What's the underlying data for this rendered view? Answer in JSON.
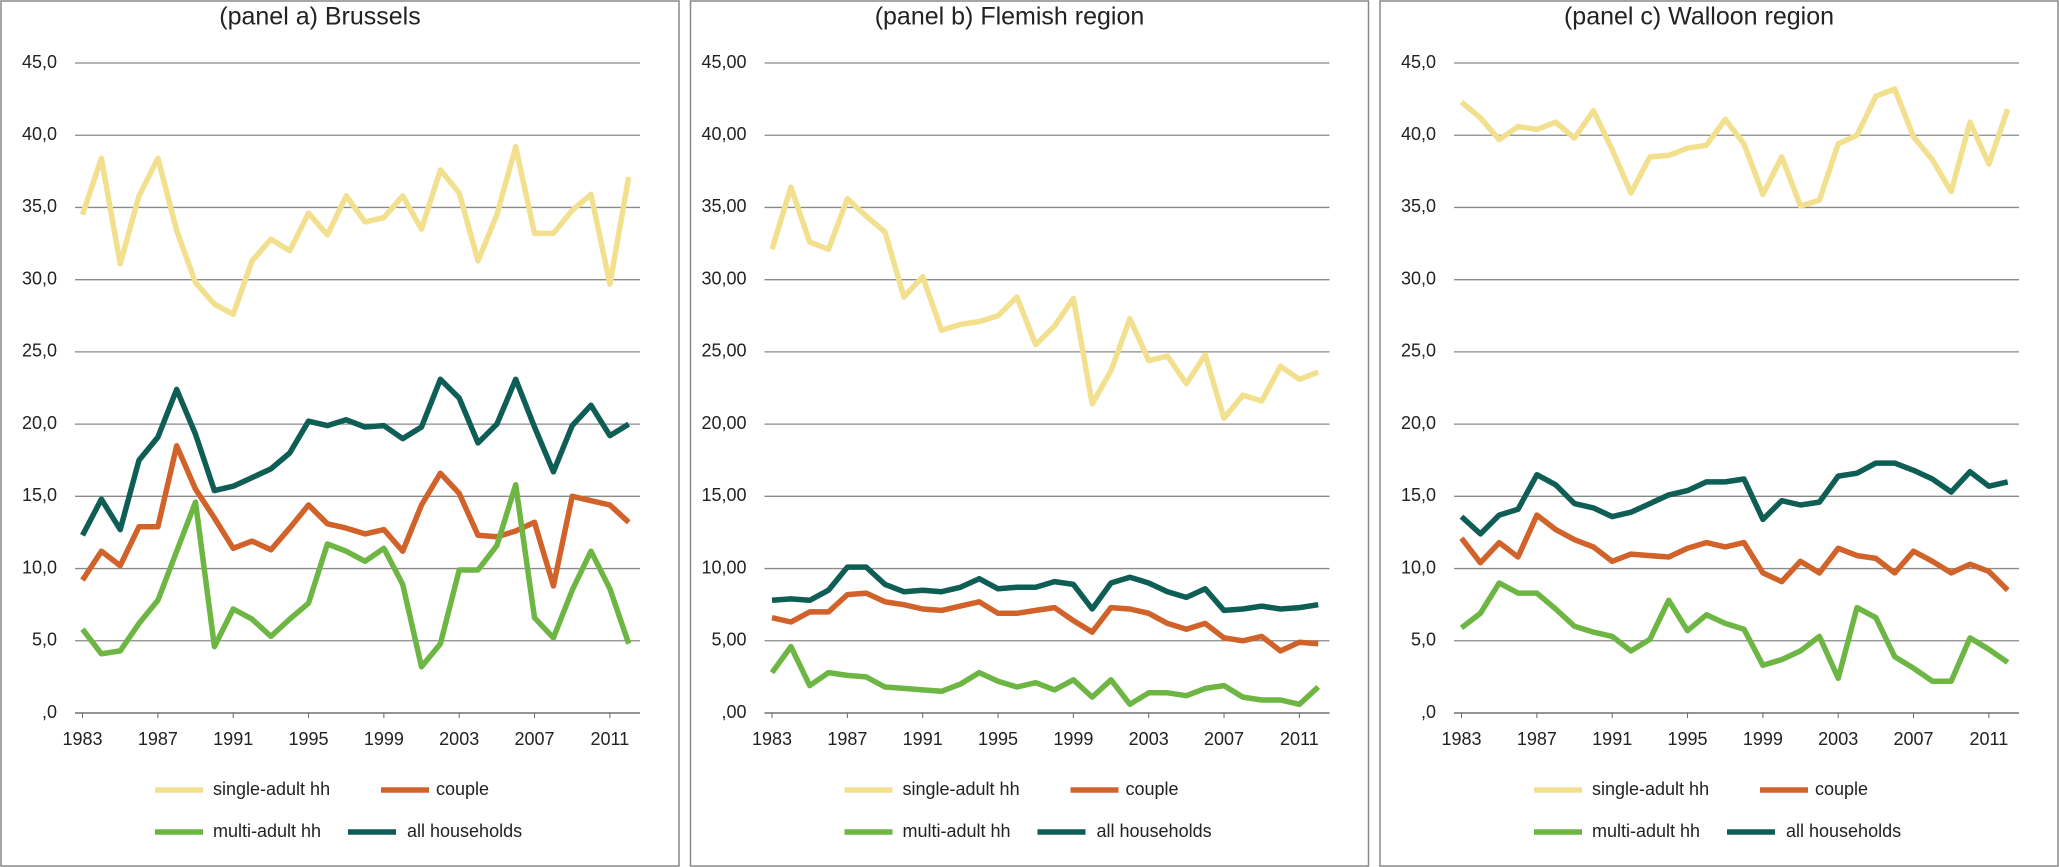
{
  "chart_data": [
    {
      "type": "line",
      "title": "(panel a) Brussels",
      "x": [
        1983,
        1984,
        1985,
        1986,
        1987,
        1988,
        1989,
        1990,
        1991,
        1992,
        1993,
        1994,
        1995,
        1996,
        1997,
        1998,
        1999,
        2000,
        2001,
        2002,
        2003,
        2004,
        2005,
        2006,
        2007,
        2008,
        2009,
        2010,
        2011,
        2012
      ],
      "xlim": [
        1982.6,
        2012.6
      ],
      "xticks": [
        1983,
        1987,
        1991,
        1995,
        1999,
        2003,
        2007,
        2011
      ],
      "ylim": [
        0,
        45
      ],
      "yticks": [
        {
          "value": 0,
          "label": ",0"
        },
        {
          "value": 5,
          "label": "5,0"
        },
        {
          "value": 10,
          "label": "10,0"
        },
        {
          "value": 15,
          "label": "15,0"
        },
        {
          "value": 20,
          "label": "20,0"
        },
        {
          "value": 25,
          "label": "25,0"
        },
        {
          "value": 30,
          "label": "30,0"
        },
        {
          "value": 35,
          "label": "35,0"
        },
        {
          "value": 40,
          "label": "40,0"
        },
        {
          "value": 45,
          "label": "45,0"
        }
      ],
      "grid": true,
      "series": [
        {
          "name": "single-adult hh",
          "color": "#f2e08f",
          "values": [
            34.5,
            38.4,
            31.1,
            35.8,
            38.4,
            33.4,
            29.8,
            28.3,
            27.6,
            31.3,
            32.8,
            32.0,
            34.6,
            33.1,
            35.8,
            34.0,
            34.3,
            35.8,
            33.5,
            37.6,
            36.0,
            31.3,
            34.5,
            39.2,
            33.2,
            33.2,
            34.8,
            35.9,
            29.7,
            37.1
          ]
        },
        {
          "name": "couple",
          "color": "#d0622a",
          "values": [
            9.2,
            11.2,
            10.2,
            12.9,
            12.9,
            18.5,
            15.5,
            13.5,
            11.4,
            11.9,
            11.3,
            12.8,
            14.4,
            13.1,
            12.8,
            12.4,
            12.7,
            11.2,
            14.4,
            16.6,
            15.2,
            12.3,
            12.2,
            12.6,
            13.2,
            8.8,
            15.0,
            14.7,
            14.4,
            13.2
          ]
        },
        {
          "name": "multi-adult hh",
          "color": "#6db644",
          "values": [
            5.8,
            4.1,
            4.3,
            6.2,
            7.8,
            11.2,
            14.6,
            4.6,
            7.2,
            6.5,
            5.3,
            6.5,
            7.6,
            11.7,
            11.2,
            10.5,
            11.4,
            8.9,
            3.2,
            4.8,
            9.9,
            9.9,
            11.6,
            15.8,
            6.6,
            5.2,
            8.5,
            11.2,
            8.6,
            4.8
          ]
        },
        {
          "name": "all households",
          "color": "#0e5e55",
          "values": [
            12.3,
            14.8,
            12.7,
            17.5,
            19.1,
            22.4,
            19.3,
            15.4,
            15.7,
            16.3,
            16.9,
            18.0,
            20.2,
            19.9,
            20.3,
            19.8,
            19.9,
            19.0,
            19.8,
            23.1,
            21.8,
            18.7,
            20.0,
            23.1,
            19.8,
            16.7,
            19.9,
            21.3,
            19.2,
            20.0
          ]
        }
      ]
    },
    {
      "type": "line",
      "title": "(panel b) Flemish region",
      "x": [
        1983,
        1984,
        1985,
        1986,
        1987,
        1988,
        1989,
        1990,
        1991,
        1992,
        1993,
        1994,
        1995,
        1996,
        1997,
        1998,
        1999,
        2000,
        2001,
        2002,
        2003,
        2004,
        2005,
        2006,
        2007,
        2008,
        2009,
        2010,
        2011,
        2012
      ],
      "xlim": [
        1982.6,
        2012.6
      ],
      "xticks": [
        1983,
        1987,
        1991,
        1995,
        1999,
        2003,
        2007,
        2011
      ],
      "ylim": [
        0,
        45
      ],
      "yticks": [
        {
          "value": 0,
          "label": ",00"
        },
        {
          "value": 5,
          "label": "5,00"
        },
        {
          "value": 10,
          "label": "10,00"
        },
        {
          "value": 15,
          "label": "15,00"
        },
        {
          "value": 20,
          "label": "20,00"
        },
        {
          "value": 25,
          "label": "25,00"
        },
        {
          "value": 30,
          "label": "30,00"
        },
        {
          "value": 35,
          "label": "35,00"
        },
        {
          "value": 40,
          "label": "40,00"
        },
        {
          "value": 45,
          "label": "45,00"
        }
      ],
      "grid": true,
      "series": [
        {
          "name": "single-adult hh",
          "color": "#f2e08f",
          "values": [
            32.1,
            36.4,
            32.6,
            32.1,
            35.6,
            34.4,
            33.3,
            28.8,
            30.2,
            26.5,
            26.9,
            27.1,
            27.5,
            28.8,
            25.5,
            26.8,
            28.7,
            21.4,
            23.7,
            27.3,
            24.4,
            24.7,
            22.8,
            24.8,
            20.4,
            22.0,
            21.6,
            24.0,
            23.1,
            23.6
          ]
        },
        {
          "name": "couple",
          "color": "#d0622a",
          "values": [
            6.6,
            6.3,
            7.0,
            7.0,
            8.2,
            8.3,
            7.7,
            7.5,
            7.2,
            7.1,
            7.4,
            7.7,
            6.9,
            6.9,
            7.1,
            7.3,
            6.4,
            5.6,
            7.3,
            7.2,
            6.9,
            6.2,
            5.8,
            6.2,
            5.2,
            5.0,
            5.3,
            4.3,
            4.9,
            4.8
          ]
        },
        {
          "name": "multi-adult hh",
          "color": "#6db644",
          "values": [
            2.8,
            4.6,
            1.9,
            2.8,
            2.6,
            2.5,
            1.8,
            1.7,
            1.6,
            1.5,
            2.0,
            2.8,
            2.2,
            1.8,
            2.1,
            1.6,
            2.3,
            1.1,
            2.3,
            0.6,
            1.4,
            1.4,
            1.2,
            1.7,
            1.9,
            1.1,
            0.9,
            0.9,
            0.6,
            1.8
          ]
        },
        {
          "name": "all households",
          "color": "#0e5e55",
          "values": [
            7.8,
            7.9,
            7.8,
            8.5,
            10.1,
            10.1,
            8.9,
            8.4,
            8.5,
            8.4,
            8.7,
            9.3,
            8.6,
            8.7,
            8.7,
            9.1,
            8.9,
            7.2,
            9.0,
            9.4,
            9.0,
            8.4,
            8.0,
            8.6,
            7.1,
            7.2,
            7.4,
            7.2,
            7.3,
            7.5
          ]
        }
      ]
    },
    {
      "type": "line",
      "title": "(panel c) Walloon region",
      "x": [
        1983,
        1984,
        1985,
        1986,
        1987,
        1988,
        1989,
        1990,
        1991,
        1992,
        1993,
        1994,
        1995,
        1996,
        1997,
        1998,
        1999,
        2000,
        2001,
        2002,
        2003,
        2004,
        2005,
        2006,
        2007,
        2008,
        2009,
        2010,
        2011,
        2012
      ],
      "xlim": [
        1982.6,
        2012.6
      ],
      "xticks": [
        1983,
        1987,
        1991,
        1995,
        1999,
        2003,
        2007,
        2011
      ],
      "ylim": [
        0,
        45
      ],
      "yticks": [
        {
          "value": 0,
          "label": ",0"
        },
        {
          "value": 5,
          "label": "5,0"
        },
        {
          "value": 10,
          "label": "10,0"
        },
        {
          "value": 15,
          "label": "15,0"
        },
        {
          "value": 20,
          "label": "20,0"
        },
        {
          "value": 25,
          "label": "25,0"
        },
        {
          "value": 30,
          "label": "30,0"
        },
        {
          "value": 35,
          "label": "35,0"
        },
        {
          "value": 40,
          "label": "40,0"
        },
        {
          "value": 45,
          "label": "45,0"
        }
      ],
      "grid": true,
      "series": [
        {
          "name": "single-adult hh",
          "color": "#f2e08f",
          "values": [
            42.3,
            41.2,
            39.7,
            40.6,
            40.4,
            40.9,
            39.8,
            41.7,
            39.0,
            36.0,
            38.5,
            38.6,
            39.1,
            39.3,
            41.1,
            39.4,
            35.9,
            38.5,
            35.1,
            35.5,
            39.4,
            40.0,
            42.7,
            43.2,
            39.9,
            38.3,
            36.1,
            40.9,
            38.0,
            41.8
          ]
        },
        {
          "name": "couple",
          "color": "#d0622a",
          "values": [
            12.1,
            10.4,
            11.8,
            10.8,
            13.7,
            12.7,
            12.0,
            11.5,
            10.5,
            11.0,
            10.9,
            10.8,
            11.4,
            11.8,
            11.5,
            11.8,
            9.7,
            9.1,
            10.5,
            9.7,
            11.4,
            10.9,
            10.7,
            9.7,
            11.2,
            10.5,
            9.7,
            10.3,
            9.8,
            8.5
          ]
        },
        {
          "name": "multi-adult hh",
          "color": "#6db644",
          "values": [
            5.9,
            6.9,
            9.0,
            8.3,
            8.3,
            7.2,
            6.0,
            5.6,
            5.3,
            4.3,
            5.1,
            7.8,
            5.7,
            6.8,
            6.2,
            5.8,
            3.3,
            3.7,
            4.3,
            5.3,
            2.4,
            7.3,
            6.6,
            3.9,
            3.1,
            2.2,
            2.2,
            5.2,
            4.4,
            3.5
          ]
        },
        {
          "name": "all households",
          "color": "#0e5e55",
          "values": [
            13.6,
            12.4,
            13.7,
            14.1,
            16.5,
            15.8,
            14.5,
            14.2,
            13.6,
            13.9,
            14.5,
            15.1,
            15.4,
            16.0,
            16.0,
            16.2,
            13.4,
            14.7,
            14.4,
            14.6,
            16.4,
            16.6,
            17.3,
            17.3,
            16.8,
            16.2,
            15.3,
            16.7,
            15.7,
            16.0
          ]
        }
      ]
    }
  ]
}
